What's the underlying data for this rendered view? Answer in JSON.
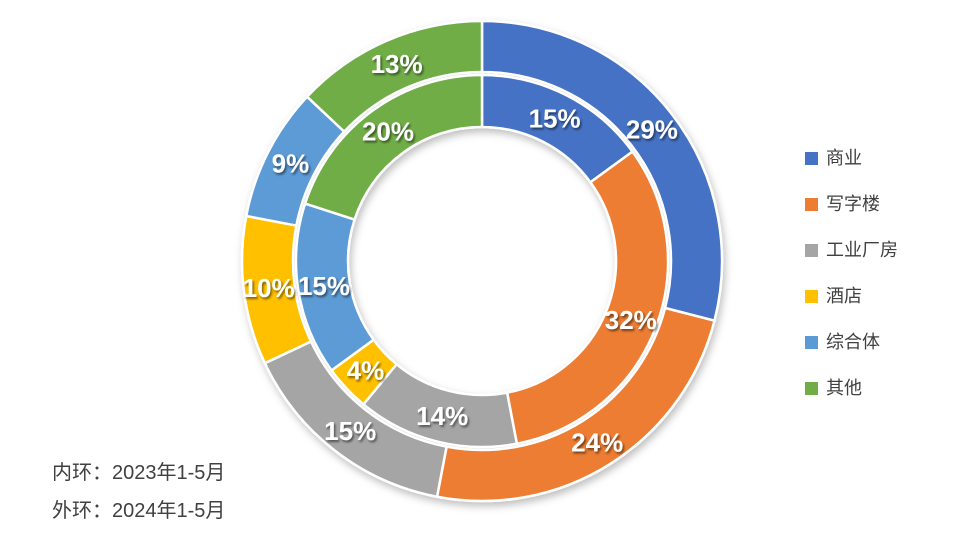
{
  "chart_data": {
    "type": "pie",
    "subtype": "double-ring-donut",
    "title": "",
    "categories": [
      "商业",
      "写字楼",
      "工业厂房",
      "酒店",
      "综合体",
      "其他"
    ],
    "colors": [
      "#4472C4",
      "#ED7D31",
      "#A5A5A5",
      "#FFC000",
      "#5B9BD5",
      "#70AD47"
    ],
    "series": [
      {
        "name": "2023年1-5月",
        "ring": "inner",
        "values": [
          15,
          32,
          14,
          4,
          15,
          20
        ],
        "labels": [
          "15%",
          "32%",
          "14%",
          "4%",
          "15%",
          "20%"
        ]
      },
      {
        "name": "2024年1-5月",
        "ring": "outer",
        "values": [
          29,
          24,
          15,
          10,
          9,
          13
        ],
        "labels": [
          "29%",
          "24%",
          "15%",
          "10%",
          "9%",
          "13%"
        ]
      }
    ],
    "start_angle_deg": 0,
    "direction": "clockwise",
    "legend_position": "right",
    "data_label_color": "#FFFFFF",
    "background": "#FFFFFF"
  },
  "legend": {
    "items": [
      {
        "label": "商业",
        "color": "#4472C4"
      },
      {
        "label": "写字楼",
        "color": "#ED7D31"
      },
      {
        "label": "工业厂房",
        "color": "#A5A5A5"
      },
      {
        "label": "酒店",
        "color": "#FFC000"
      },
      {
        "label": "综合体",
        "color": "#5B9BD5"
      },
      {
        "label": "其他",
        "color": "#70AD47"
      }
    ]
  },
  "footnotes": {
    "inner": "内环：2023年1-5月",
    "outer": "外环：2024年1-5月"
  }
}
